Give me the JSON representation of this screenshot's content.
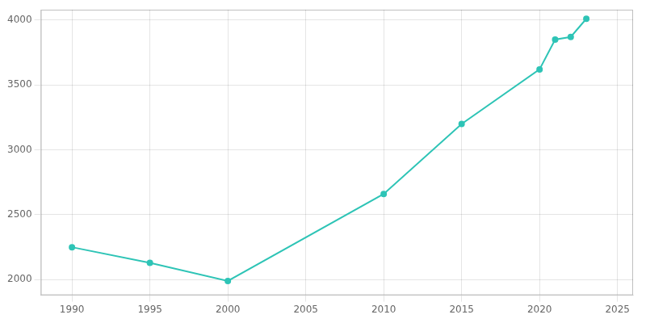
{
  "chart_data": {
    "type": "line",
    "x": [
      1990,
      1995,
      2000,
      2010,
      2015,
      2020,
      2021,
      2022,
      2023
    ],
    "values": [
      2250,
      2130,
      1990,
      2660,
      3200,
      3620,
      3850,
      3870,
      4010
    ],
    "color": "#2ec4b6",
    "marker": "circle",
    "xlim": [
      1988,
      2026
    ],
    "ylim": [
      1880,
      4080
    ],
    "xticks": [
      1990,
      1995,
      2000,
      2005,
      2010,
      2015,
      2020,
      2025
    ],
    "yticks": [
      2000,
      2500,
      3000,
      3500,
      4000
    ],
    "grid": true
  }
}
